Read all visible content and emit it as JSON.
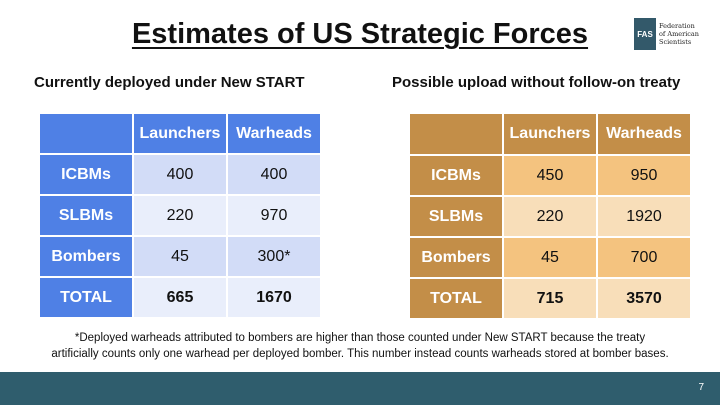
{
  "title": "Estimates of US Strategic Forces",
  "logo": {
    "abbr": "FAS",
    "line1": "Federation",
    "line2": "of American",
    "line3": "Scientists"
  },
  "left_table": {
    "subtitle": "Currently deployed under New START",
    "col1": "Launchers",
    "col2": "Warheads",
    "rows": [
      {
        "label": "ICBMs",
        "launchers": "400",
        "warheads": "400"
      },
      {
        "label": "SLBMs",
        "launchers": "220",
        "warheads": "970"
      },
      {
        "label": "Bombers",
        "launchers": "45",
        "warheads": "300*"
      },
      {
        "label": "TOTAL",
        "launchers": "665",
        "warheads": "1670"
      }
    ],
    "colors": {
      "header": "#4f80e5",
      "cell_dark": "#d2dcf7",
      "cell_light": "#e9eefb"
    }
  },
  "right_table": {
    "subtitle": "Possible upload without follow-on treaty",
    "col1": "Launchers",
    "col2": "Warheads",
    "rows": [
      {
        "label": "ICBMs",
        "launchers": "450",
        "warheads": "950"
      },
      {
        "label": "SLBMs",
        "launchers": "220",
        "warheads": "1920"
      },
      {
        "label": "Bombers",
        "launchers": "45",
        "warheads": "700"
      },
      {
        "label": "TOTAL",
        "launchers": "715",
        "warheads": "3570"
      }
    ],
    "colors": {
      "header": "#c38e48",
      "cell_dark": "#f4c37f",
      "cell_light": "#f8deb9"
    }
  },
  "footnote": {
    "line1": "*Deployed warheads attributed to bombers are higher than those counted under New START because the treaty",
    "line2": "artificially counts only one warhead per deployed bomber. This number instead counts warheads stored at bomber bases."
  },
  "footer": {
    "page_number": "7",
    "bar_color": "#2f5d6d"
  }
}
